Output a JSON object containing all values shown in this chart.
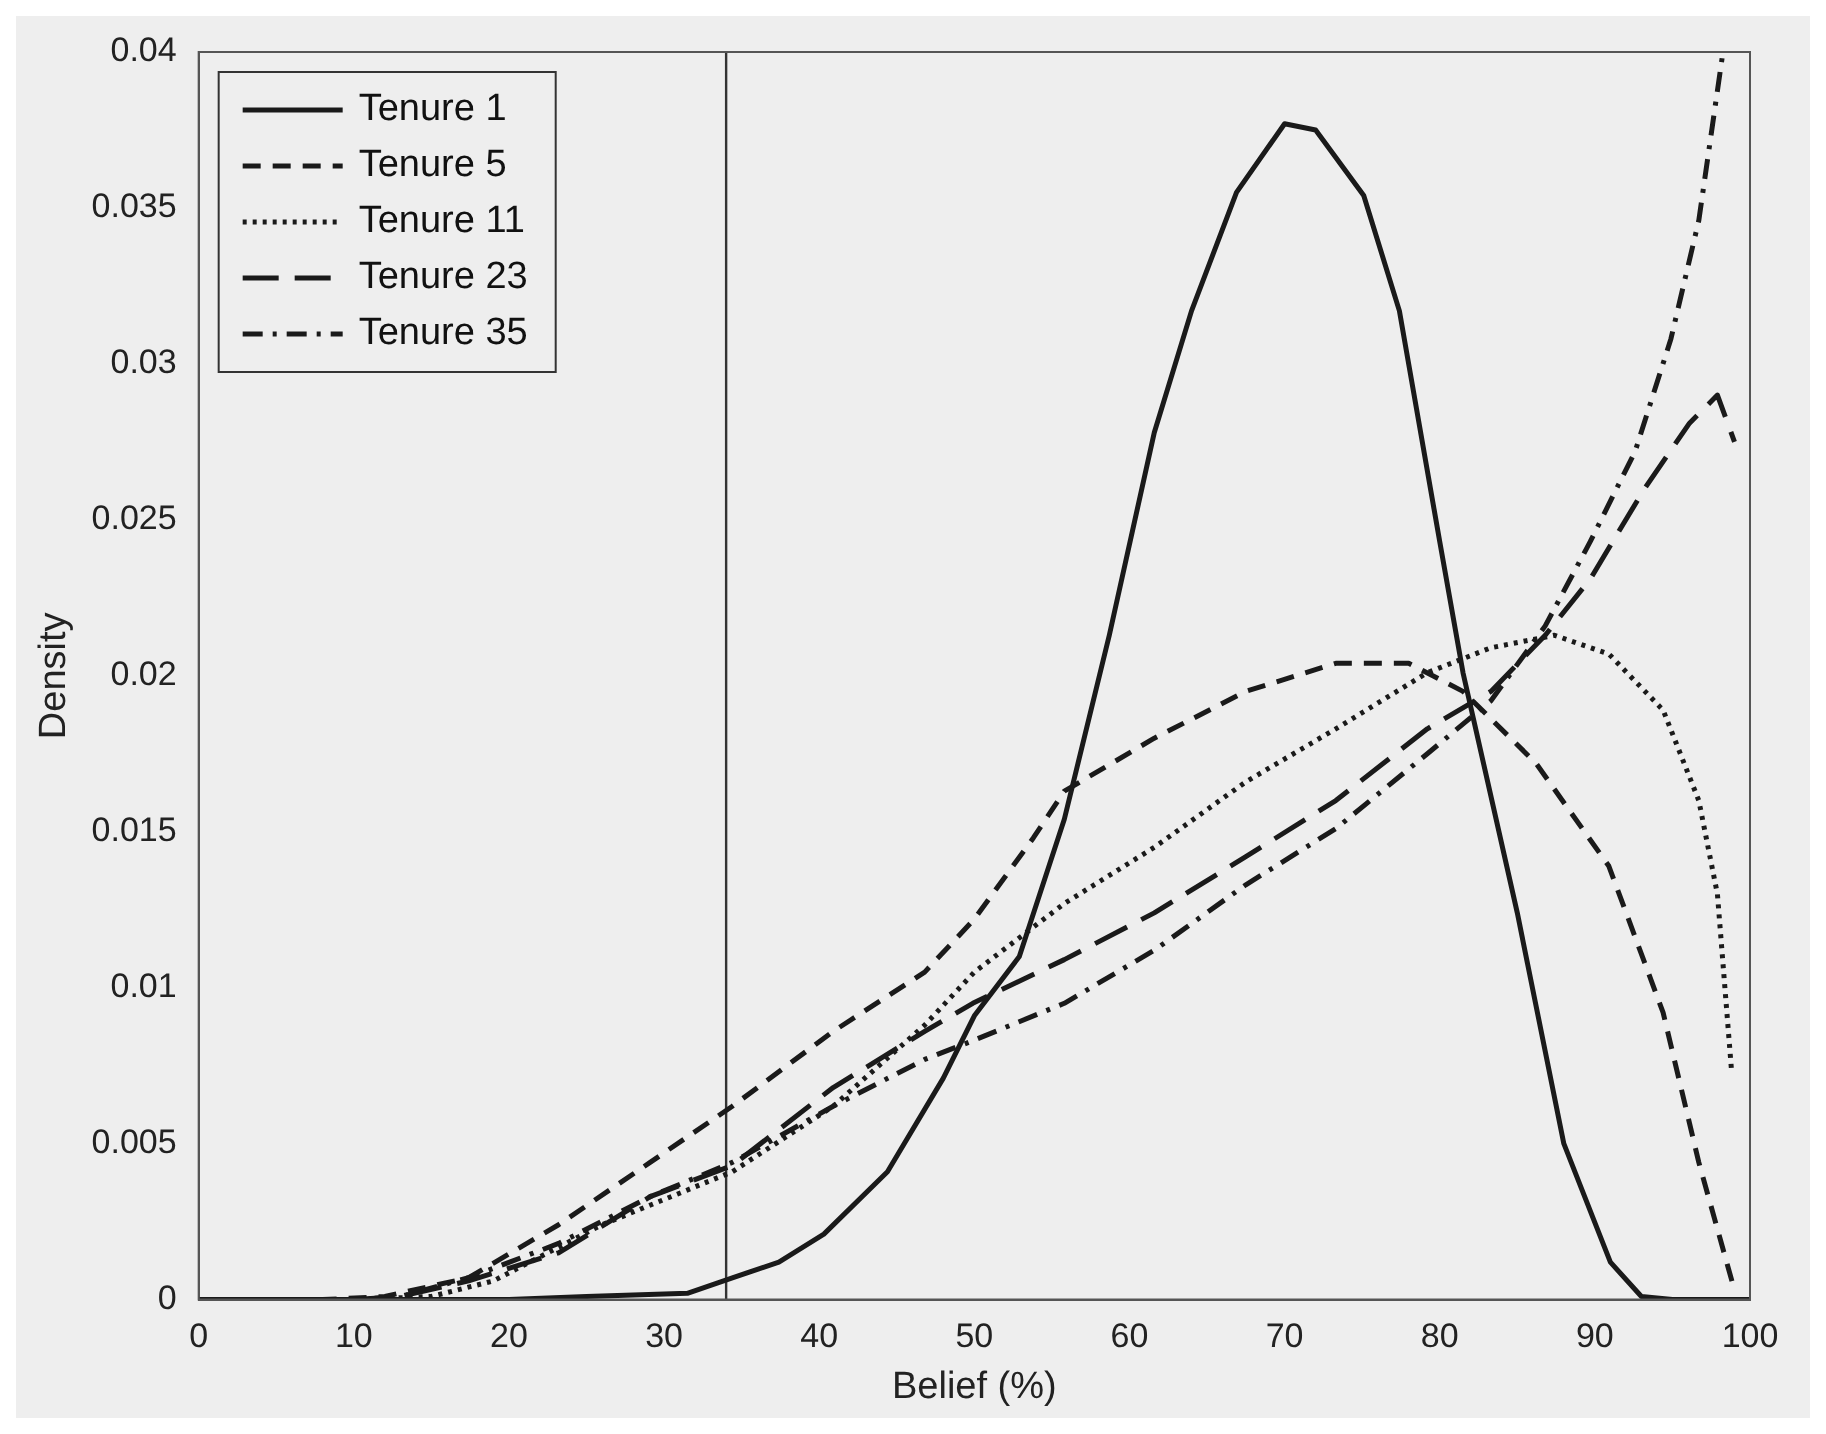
{
  "chart_data": {
    "type": "line",
    "xlabel": "Belief (%)",
    "ylabel": "Density",
    "xlim": [
      0,
      100
    ],
    "xticks": [
      0,
      10,
      20,
      30,
      40,
      50,
      60,
      70,
      80,
      90,
      100
    ],
    "ylim": [
      0,
      0.04
    ],
    "yticks": [
      0,
      0.005,
      0.01,
      0.015,
      0.02,
      0.025,
      0.03,
      0.035,
      0.04
    ],
    "grid": false,
    "legend": "top left",
    "marker": "none",
    "ref_lines": [
      {
        "axis": "x",
        "value": 34,
        "color": "#333333",
        "line_style": "solid"
      }
    ],
    "series": [
      {
        "name": "Tenure 1",
        "color": "#1a1a1a",
        "line_style": "solid",
        "x": [
          0,
          10,
          20,
          25,
          31.5,
          34.4,
          37.4,
          40.3,
          44.4,
          48,
          50,
          52.9,
          55.8,
          58.7,
          61.6,
          64,
          66.9,
          70,
          72,
          75.1,
          77.4,
          80,
          81.5,
          85,
          88,
          91,
          93,
          95,
          100
        ],
        "values": [
          0,
          0,
          0,
          0.0001,
          0.0002,
          0.0007,
          0.0012,
          0.0021,
          0.0041,
          0.0071,
          0.0091,
          0.011,
          0.0154,
          0.0213,
          0.0278,
          0.0317,
          0.0355,
          0.0377,
          0.0375,
          0.0354,
          0.0317,
          0.0243,
          0.0201,
          0.0124,
          0.005,
          0.0012,
          0.0001,
          0,
          0
        ]
      },
      {
        "name": "Tenure 5",
        "color": "#1a1a1a",
        "line_style": "dashed",
        "x": [
          0,
          8,
          12,
          17.4,
          23.2,
          29.1,
          34.4,
          40.9,
          46.8,
          50,
          53.8,
          55.8,
          61.6,
          67.5,
          73.3,
          78,
          81.5,
          86.2,
          90.9,
          94.4,
          96.7,
          99
        ],
        "values": [
          0,
          0,
          0.0001,
          0.0007,
          0.0024,
          0.0044,
          0.0062,
          0.0086,
          0.0105,
          0.0122,
          0.0148,
          0.0163,
          0.018,
          0.0195,
          0.0204,
          0.0204,
          0.0195,
          0.0172,
          0.0139,
          0.0092,
          0.0044,
          0.0003
        ]
      },
      {
        "name": "Tenure 11",
        "color": "#1a1a1a",
        "line_style": "dotted",
        "x": [
          0,
          10,
          15,
          19,
          26,
          34.4,
          40.9,
          46.8,
          50,
          55.8,
          61.6,
          67.5,
          73.3,
          79.2,
          83.3,
          87.4,
          90.9,
          94.4,
          96.7,
          97.9,
          98.8
        ],
        "values": [
          0,
          0,
          0.0001,
          0.0006,
          0.0024,
          0.0041,
          0.0062,
          0.0088,
          0.0105,
          0.0127,
          0.0145,
          0.0166,
          0.0183,
          0.0201,
          0.0209,
          0.0213,
          0.0207,
          0.0189,
          0.016,
          0.013,
          0.0074
        ]
      },
      {
        "name": "Tenure 23",
        "color": "#1a1a1a",
        "line_style": "longdashed",
        "x": [
          0,
          10,
          13,
          17.4,
          23.2,
          29.1,
          34.4,
          40.9,
          46.8,
          49.9,
          55.8,
          61.6,
          67.5,
          73.3,
          79.2,
          83.3,
          86.8,
          89.7,
          93.2,
          96.1,
          97.9,
          99
        ],
        "values": [
          0,
          0,
          0.0001,
          0.0006,
          0.0015,
          0.0033,
          0.0043,
          0.0068,
          0.0086,
          0.0095,
          0.0109,
          0.0124,
          0.0142,
          0.016,
          0.0183,
          0.0195,
          0.0213,
          0.0231,
          0.026,
          0.0281,
          0.029,
          0.0275
        ]
      },
      {
        "name": "Tenure 35",
        "color": "#1a1a1a",
        "line_style": "dashdot",
        "x": [
          0,
          10,
          13,
          17.4,
          23.2,
          29.1,
          34.4,
          40.9,
          46.8,
          49.9,
          55.8,
          61.6,
          67.5,
          73.3,
          79.2,
          83.3,
          86.8,
          89.7,
          92.6,
          94.9,
          96.7,
          98.2
        ],
        "values": [
          0,
          0,
          0.0001,
          0.0007,
          0.0018,
          0.0033,
          0.0044,
          0.0062,
          0.0077,
          0.0083,
          0.0095,
          0.0112,
          0.0133,
          0.0151,
          0.0175,
          0.0192,
          0.0216,
          0.0243,
          0.0272,
          0.0308,
          0.0346,
          0.0398
        ]
      }
    ]
  }
}
